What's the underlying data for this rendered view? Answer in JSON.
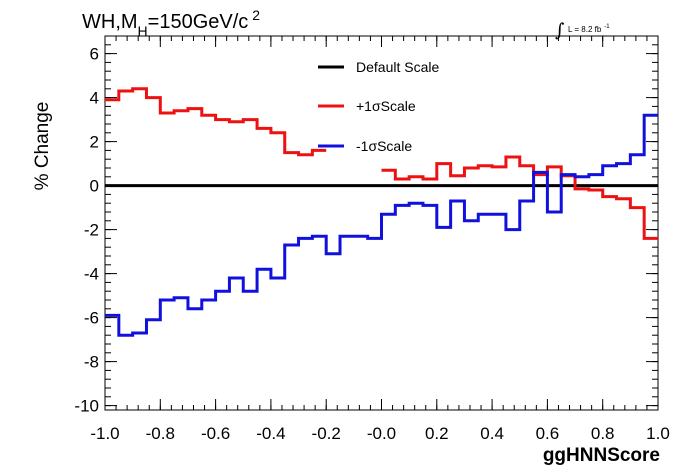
{
  "chart_data": {
    "type": "line",
    "style": "step-histogram",
    "title_main": "WH,M",
    "title_sub": "H",
    "title_rest": "=150GeV/c",
    "title_sup": "2",
    "lumi_integral": "∫",
    "lumi_text": "L = 8.2 fb",
    "lumi_sup": "-1",
    "xlabel": "ggHNNScore",
    "ylabel": "% Change",
    "xlim": [
      -1.0,
      1.0
    ],
    "ylim": [
      -10.2,
      6.8
    ],
    "x_ticks": [
      "-1.0",
      "-0.8",
      "-0.6",
      "-0.4",
      "-0.2",
      "-0.0",
      "0.2",
      "0.4",
      "0.6",
      "0.8",
      "1.0"
    ],
    "x_tick_values": [
      -1.0,
      -0.8,
      -0.6,
      -0.4,
      -0.2,
      0.0,
      0.2,
      0.4,
      0.6,
      0.8,
      1.0
    ],
    "y_ticks": [
      "6",
      "4",
      "2",
      "0",
      "-2",
      "-4",
      "-6",
      "-8",
      "-10"
    ],
    "y_tick_values": [
      6,
      4,
      2,
      0,
      -2,
      -4,
      -6,
      -8,
      -10
    ],
    "bin_edges": [
      -1.0,
      -0.95,
      -0.9,
      -0.85,
      -0.8,
      -0.75,
      -0.7,
      -0.65,
      -0.6,
      -0.55,
      -0.5,
      -0.45,
      -0.4,
      -0.35,
      -0.3,
      -0.25,
      -0.2,
      -0.15,
      -0.1,
      -0.05,
      0.0,
      0.05,
      0.1,
      0.15,
      0.2,
      0.25,
      0.3,
      0.35,
      0.4,
      0.45,
      0.5,
      0.55,
      0.6,
      0.65,
      0.7,
      0.75,
      0.8,
      0.85,
      0.9,
      0.95,
      1.0
    ],
    "legend_position": "top-center",
    "series": [
      {
        "name": "Default Scale",
        "color": "#000000",
        "values": [
          0,
          0,
          0,
          0,
          0,
          0,
          0,
          0,
          0,
          0,
          0,
          0,
          0,
          0,
          0,
          0,
          0,
          0,
          0,
          0,
          0,
          0,
          0,
          0,
          0,
          0,
          0,
          0,
          0,
          0,
          0,
          0,
          0,
          0,
          0,
          0,
          0,
          0,
          0,
          0
        ]
      },
      {
        "name": "+1σScale",
        "color": "#ee1111",
        "values": [
          3.9,
          4.3,
          4.4,
          4.0,
          3.3,
          3.4,
          3.5,
          3.2,
          3.0,
          2.9,
          3.0,
          2.6,
          2.4,
          1.5,
          1.4,
          1.6,
          null,
          null,
          null,
          null,
          0.7,
          0.3,
          0.4,
          0.3,
          1.0,
          0.45,
          0.8,
          0.9,
          0.85,
          1.3,
          0.9,
          0.5,
          0.85,
          0.45,
          -0.15,
          -0.2,
          -0.5,
          -0.6,
          -1.0,
          -2.4
        ]
      },
      {
        "name": "-1σScale",
        "color": "#1111dd",
        "values": [
          -5.9,
          -6.8,
          -6.7,
          -6.1,
          -5.2,
          -5.1,
          -5.6,
          -5.2,
          -4.8,
          -4.2,
          -4.8,
          -3.8,
          -4.2,
          -2.7,
          -2.4,
          -2.3,
          -3.1,
          -2.3,
          -2.3,
          -2.4,
          -1.3,
          -0.9,
          -0.8,
          -0.9,
          -1.9,
          -0.7,
          -1.6,
          -1.3,
          -1.3,
          -2.0,
          -0.7,
          0.6,
          -1.2,
          0.5,
          0.4,
          0.5,
          0.9,
          1.0,
          1.4,
          3.2
        ]
      }
    ]
  }
}
